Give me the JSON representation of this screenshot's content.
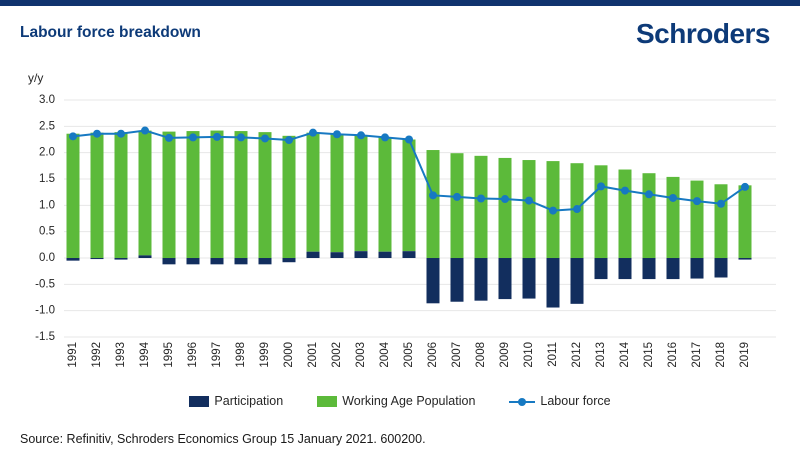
{
  "page": {
    "title": "Labour force breakdown",
    "logo": "Schroders",
    "source": "Source: Refinitiv, Schroders Economics Group 15 January 2021. 600200."
  },
  "colors": {
    "brand_navy": "#0d3a78",
    "participation_navy": "#122e5e",
    "wap_green": "#5cba3a",
    "labour_force_blue": "#1779c2",
    "gridline": "#e7e7e7",
    "axis_text": "#262626"
  },
  "chart_data": {
    "type": "bar",
    "subtype": "stacked bars with line overlay",
    "title": "Labour force breakdown",
    "xlabel": "",
    "ylabel": "y/y",
    "ylim": [
      -1.5,
      3.0
    ],
    "ytick_step": 0.5,
    "grid": true,
    "legend_position": "bottom",
    "categories": [
      "1991",
      "1992",
      "1993",
      "1994",
      "1995",
      "1996",
      "1997",
      "1998",
      "1999",
      "2000",
      "2001",
      "2002",
      "2003",
      "2004",
      "2005",
      "2006",
      "2007",
      "2008",
      "2009",
      "2010",
      "2011",
      "2012",
      "2013",
      "2014",
      "2015",
      "2016",
      "2017",
      "2018",
      "2019"
    ],
    "series": [
      {
        "name": "Participation",
        "type": "bar",
        "color": "#122e5e",
        "values": [
          -0.05,
          -0.02,
          -0.03,
          0.05,
          -0.12,
          -0.12,
          -0.12,
          -0.12,
          -0.12,
          -0.08,
          0.12,
          0.11,
          0.13,
          0.12,
          0.13,
          -0.86,
          -0.83,
          -0.81,
          -0.78,
          -0.77,
          -0.94,
          -0.87,
          -0.4,
          -0.4,
          -0.4,
          -0.4,
          -0.39,
          -0.37,
          -0.03
        ]
      },
      {
        "name": "Working Age Population",
        "type": "bar",
        "color": "#5cba3a",
        "values": [
          2.36,
          2.38,
          2.39,
          2.37,
          2.4,
          2.41,
          2.42,
          2.41,
          2.39,
          2.32,
          2.26,
          2.24,
          2.2,
          2.17,
          2.12,
          2.05,
          1.99,
          1.94,
          1.9,
          1.86,
          1.84,
          1.8,
          1.76,
          1.68,
          1.61,
          1.54,
          1.47,
          1.4,
          1.38
        ]
      },
      {
        "name": "Labour force",
        "type": "line",
        "color": "#1779c2",
        "values": [
          2.31,
          2.36,
          2.36,
          2.42,
          2.28,
          2.29,
          2.3,
          2.29,
          2.27,
          2.24,
          2.38,
          2.35,
          2.33,
          2.29,
          2.25,
          1.19,
          1.16,
          1.13,
          1.12,
          1.09,
          0.9,
          0.93,
          1.36,
          1.28,
          1.21,
          1.14,
          1.08,
          1.03,
          1.35
        ]
      }
    ]
  }
}
